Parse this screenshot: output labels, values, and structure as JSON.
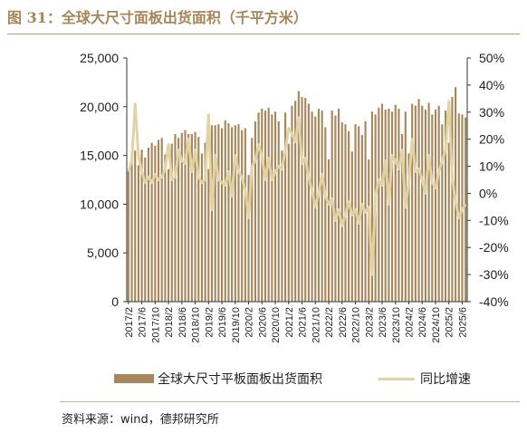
{
  "title": "图 31：全球大尺寸面板出货面积（千平方米）",
  "legend": {
    "bar_label": "全球大尺寸平板面板出货面积",
    "line_label": "同比增速"
  },
  "source": "资料来源：wind，德邦研究所",
  "colors": {
    "bar": "#a6875d",
    "line": "#e2d3a4",
    "title": "#a88558"
  },
  "chart_data": {
    "type": "bar",
    "title": "全球大尺寸面板出货面积（千平方米）",
    "x": [
      "2017/2",
      "2017/3",
      "2017/4",
      "2017/5",
      "2017/6",
      "2017/7",
      "2017/8",
      "2017/9",
      "2017/10",
      "2017/11",
      "2017/12",
      "2018/1",
      "2018/2",
      "2018/3",
      "2018/4",
      "2018/5",
      "2018/6",
      "2018/7",
      "2018/8",
      "2018/9",
      "2018/10",
      "2018/11",
      "2018/12",
      "2019/1",
      "2019/2",
      "2019/3",
      "2019/4",
      "2019/5",
      "2019/6",
      "2019/7",
      "2019/8",
      "2019/9",
      "2019/10",
      "2019/11",
      "2019/12",
      "2020/1",
      "2020/2",
      "2020/3",
      "2020/4",
      "2020/5",
      "2020/6",
      "2020/7",
      "2020/8",
      "2020/9",
      "2020/10",
      "2020/11",
      "2020/12",
      "2021/1",
      "2021/2",
      "2021/3",
      "2021/4",
      "2021/5",
      "2021/6",
      "2021/7",
      "2021/8",
      "2021/9",
      "2021/10",
      "2021/11",
      "2021/12",
      "2022/1",
      "2022/2",
      "2022/3",
      "2022/4",
      "2022/5",
      "2022/6",
      "2022/7",
      "2022/8",
      "2022/9",
      "2022/10",
      "2022/11",
      "2022/12",
      "2023/1",
      "2023/2",
      "2023/3",
      "2023/4",
      "2023/5",
      "2023/6",
      "2023/7",
      "2023/8",
      "2023/9",
      "2023/10",
      "2023/11",
      "2023/12",
      "2024/1",
      "2024/2",
      "2024/3",
      "2024/4",
      "2024/5",
      "2024/6",
      "2024/7",
      "2024/8",
      "2024/9",
      "2024/10",
      "2024/11",
      "2024/12",
      "2025/1",
      "2025/2",
      "2025/3",
      "2025/4",
      "2025/5",
      "2025/6",
      "2025/7"
    ],
    "x_tick_labels": [
      "2017/2",
      "2017/6",
      "2017/10",
      "2018/2",
      "2018/6",
      "2018/10",
      "2019/2",
      "2019/6",
      "2019/10",
      "2020/2",
      "2020/6",
      "2020/10",
      "2021/2",
      "2021/6",
      "2021/10",
      "2022/2",
      "2022/6",
      "2022/10",
      "2023/2",
      "2023/6",
      "2023/10",
      "2024/2",
      "2024/6",
      "2024/10",
      "2025/2",
      "2025/6"
    ],
    "series": [
      {
        "name": "全球大尺寸平板面板出货面积",
        "type": "bar",
        "axis": "left",
        "values": [
          13400,
          15200,
          15500,
          14000,
          15600,
          14800,
          15800,
          16300,
          16000,
          16600,
          16800,
          15100,
          13600,
          16200,
          17200,
          16800,
          17300,
          17600,
          17200,
          17200,
          17400,
          16900,
          15200,
          16300,
          13600,
          18100,
          18100,
          18200,
          17800,
          18600,
          18300,
          17900,
          18100,
          18200,
          17600,
          17800,
          13000,
          16800,
          18500,
          19400,
          19800,
          19600,
          19900,
          19200,
          19500,
          18500,
          15500,
          19400,
          16200,
          20100,
          20600,
          21600,
          21000,
          20900,
          20300,
          19500,
          19000,
          19800,
          19600,
          17900,
          14600,
          19600,
          19100,
          19800,
          18400,
          18200,
          17500,
          15400,
          18200,
          18000,
          17100,
          18500,
          14600,
          19500,
          19200,
          19900,
          20300,
          19700,
          19800,
          19500,
          20200,
          19800,
          17200,
          19500,
          15200,
          20300,
          20100,
          20800,
          20100,
          19700,
          20400,
          19200,
          19700,
          20100,
          18200,
          19600,
          16300,
          21000,
          22000,
          19300,
          19200,
          18900
        ],
        "ylim": [
          0,
          25000
        ]
      },
      {
        "name": "同比增速",
        "type": "line",
        "axis": "right",
        "values": [
          8,
          12,
          33,
          14,
          8,
          4,
          6,
          4,
          7,
          5,
          6,
          9,
          18,
          5,
          6,
          16,
          12,
          11,
          20,
          8,
          16,
          6,
          4,
          5,
          29,
          -6,
          14,
          5,
          4,
          3,
          8,
          -1,
          14,
          8,
          6,
          1,
          -9,
          10,
          12,
          18,
          14,
          5,
          13,
          5,
          8,
          10,
          9,
          16,
          24,
          22,
          19,
          28,
          11,
          13,
          6,
          1,
          -5,
          0,
          7,
          -1,
          -4,
          -2,
          -10,
          -6,
          -12,
          -8,
          -3,
          -8,
          -6,
          -11,
          -4,
          -7,
          -5,
          -30,
          -1,
          5,
          3,
          12,
          -4,
          14,
          12,
          9,
          16,
          -5,
          4,
          20,
          8,
          9,
          5,
          0,
          14,
          4,
          2,
          8,
          12,
          16,
          34,
          6,
          -3,
          -9,
          -6,
          -4
        ],
        "ylim": [
          -40,
          50
        ]
      }
    ],
    "y_left": {
      "min": 0,
      "max": 25000,
      "ticks": [
        "0",
        "5,000",
        "10,000",
        "15,000",
        "20,000",
        "25,000"
      ]
    },
    "y_right": {
      "min": -40,
      "max": 50,
      "ticks": [
        "-40%",
        "-30%",
        "-20%",
        "-10%",
        "0%",
        "10%",
        "20%",
        "30%",
        "40%",
        "50%"
      ]
    },
    "grid": false,
    "legend_position": "bottom"
  }
}
